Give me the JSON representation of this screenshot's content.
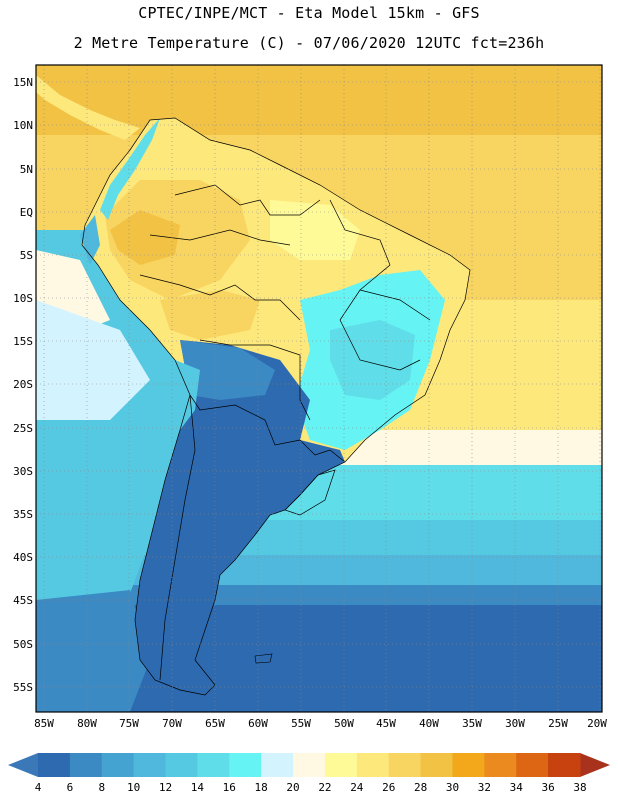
{
  "header": {
    "line1": "CPTEC/INPE/MCT -  Eta Model 15km - GFS",
    "line2": "2 Metre Temperature (C) - 07/06/2020 12UTC fct=236h"
  },
  "axes": {
    "lat_labels": [
      "15N",
      "10N",
      "5N",
      "EQ",
      "5S",
      "10S",
      "15S",
      "20S",
      "25S",
      "30S",
      "35S",
      "40S",
      "45S",
      "50S",
      "55S"
    ],
    "lon_labels": [
      "85W",
      "80W",
      "75W",
      "70W",
      "65W",
      "60W",
      "55W",
      "50W",
      "45W",
      "40W",
      "35W",
      "30W",
      "25W",
      "20W"
    ]
  },
  "colorbar": {
    "labels": [
      "4",
      "6",
      "8",
      "10",
      "12",
      "14",
      "16",
      "18",
      "20",
      "22",
      "24",
      "26",
      "28",
      "30",
      "32",
      "34",
      "36",
      "38"
    ],
    "colors": [
      "#3a78b8",
      "#2d6ab0",
      "#3b8ac4",
      "#45a3d2",
      "#4fb8dc",
      "#55c9e2",
      "#5fdde8",
      "#66f3f3",
      "#d3f4ff",
      "#fff8e2",
      "#fffa98",
      "#fde87c",
      "#f8d460",
      "#f2c244",
      "#f3a81b",
      "#ea8a1f",
      "#dc6613",
      "#c84210",
      "#a8321c"
    ]
  },
  "map_regions": {
    "ocean_north": "Atlantic (warm)",
    "continent": "South America"
  }
}
